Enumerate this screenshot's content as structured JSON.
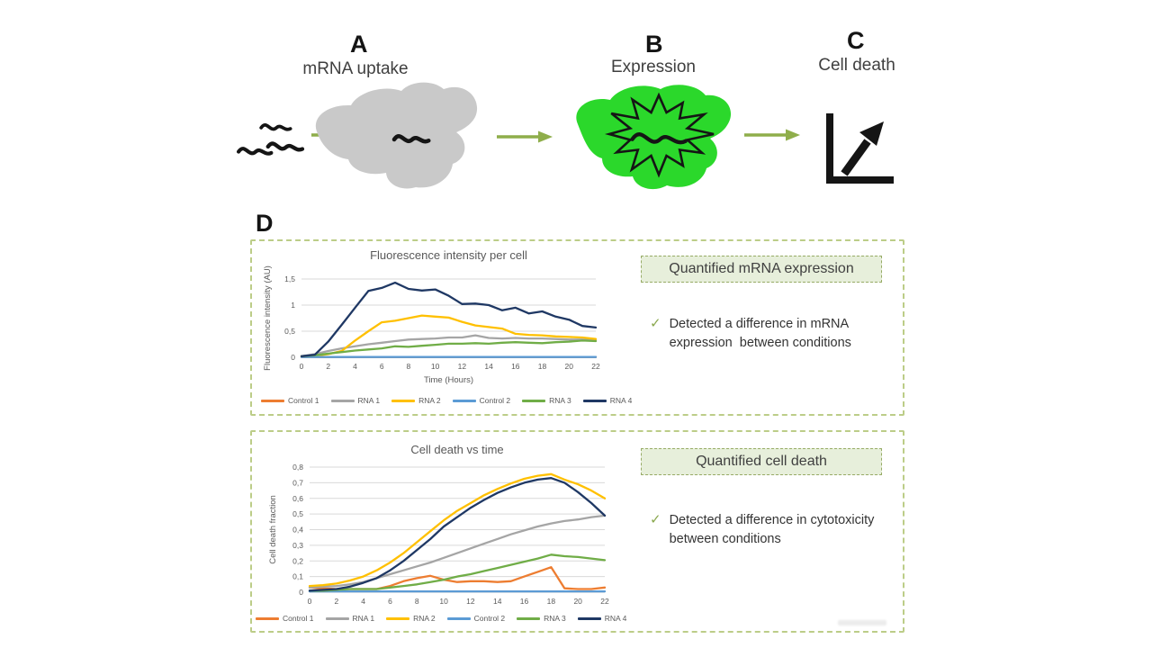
{
  "steps": [
    {
      "letter": "A",
      "caption": "mRNA uptake"
    },
    {
      "letter": "B",
      "caption": "Expression"
    },
    {
      "letter": "C",
      "caption": "Cell death"
    }
  ],
  "section_label": "D",
  "colors": {
    "cell_gray": "#c9c9c9",
    "cell_green": "#2bd82b",
    "arrow_green": "#8fae4b",
    "outer_box_border": "#bccd88",
    "heading_bg": "#e7efdb",
    "heading_border": "#97ab66",
    "check": "#8aa84e",
    "series": {
      "control1": "#ED7D31",
      "rna1": "#A5A5A5",
      "rna2": "#FFC000",
      "control2": "#5B9BD5",
      "rna3": "#70AD47",
      "rna4": "#1F3864"
    }
  },
  "result_panels": [
    {
      "heading": "Quantified mRNA expression",
      "check": "✓",
      "bullet": "Detected a difference in mRNA expression  between conditions"
    },
    {
      "heading": "Quantified cell death",
      "check": "✓",
      "bullet": "Detected a difference in cytotoxicity between conditions"
    }
  ],
  "chart_data": [
    {
      "type": "line",
      "title": "Fluorescence intensity per cell",
      "xlabel": "Time (Hours)",
      "ylabel": "Fluorescence intensity (AU)",
      "grid": true,
      "legend_position": "bottom",
      "xlim": [
        0,
        22
      ],
      "ylim": [
        0,
        1.5
      ],
      "x": [
        0,
        1,
        2,
        3,
        4,
        5,
        6,
        7,
        8,
        9,
        10,
        11,
        12,
        13,
        14,
        15,
        16,
        17,
        18,
        19,
        20,
        21,
        22
      ],
      "xticks": [
        0,
        2,
        4,
        6,
        8,
        10,
        12,
        14,
        16,
        18,
        20,
        22
      ],
      "yticks": [
        {
          "v": 0,
          "label": "0"
        },
        {
          "v": 0.5,
          "label": "0,5"
        },
        {
          "v": 1,
          "label": "1"
        },
        {
          "v": 1.5,
          "label": "1,5"
        }
      ],
      "series": [
        {
          "name": "Control 1",
          "color": "#ED7D31",
          "values": [
            0.005,
            0.005,
            0.005,
            0.005,
            0.005,
            0.005,
            0.005,
            0.005,
            0.005,
            0.005,
            0.005,
            0.005,
            0.005,
            0.005,
            0.005,
            0.005,
            0.005,
            0.005,
            0.005,
            0.005,
            0.005,
            0.005,
            0.005
          ]
        },
        {
          "name": "RNA 1",
          "color": "#A5A5A5",
          "values": [
            0.02,
            0.06,
            0.12,
            0.17,
            0.21,
            0.25,
            0.28,
            0.31,
            0.34,
            0.35,
            0.36,
            0.38,
            0.38,
            0.42,
            0.37,
            0.36,
            0.37,
            0.36,
            0.36,
            0.35,
            0.34,
            0.34,
            0.33
          ]
        },
        {
          "name": "RNA 2",
          "color": "#FFC000",
          "values": [
            0.02,
            0.03,
            0.06,
            0.12,
            0.32,
            0.5,
            0.67,
            0.7,
            0.75,
            0.8,
            0.78,
            0.76,
            0.68,
            0.61,
            0.58,
            0.55,
            0.45,
            0.43,
            0.42,
            0.4,
            0.39,
            0.38,
            0.35
          ]
        },
        {
          "name": "Control 2",
          "color": "#5B9BD5",
          "values": [
            0.005,
            0.005,
            0.005,
            0.005,
            0.005,
            0.005,
            0.005,
            0.005,
            0.005,
            0.005,
            0.005,
            0.005,
            0.005,
            0.005,
            0.005,
            0.005,
            0.005,
            0.005,
            0.005,
            0.005,
            0.005,
            0.005,
            0.005
          ]
        },
        {
          "name": "RNA 3",
          "color": "#70AD47",
          "values": [
            0.02,
            0.04,
            0.07,
            0.1,
            0.13,
            0.15,
            0.17,
            0.21,
            0.2,
            0.22,
            0.24,
            0.26,
            0.26,
            0.27,
            0.26,
            0.28,
            0.29,
            0.28,
            0.27,
            0.29,
            0.3,
            0.32,
            0.31
          ]
        },
        {
          "name": "RNA 4",
          "color": "#1F3864",
          "values": [
            0.02,
            0.05,
            0.3,
            0.62,
            0.95,
            1.27,
            1.33,
            1.43,
            1.31,
            1.28,
            1.3,
            1.18,
            1.02,
            1.03,
            1.0,
            0.9,
            0.95,
            0.84,
            0.88,
            0.78,
            0.72,
            0.6,
            0.57
          ]
        }
      ]
    },
    {
      "type": "line",
      "title": "Cell death vs time",
      "xlabel": "",
      "ylabel": "Cell death fraction",
      "grid": true,
      "legend_position": "bottom",
      "xlim": [
        0,
        22
      ],
      "ylim": [
        0,
        0.8
      ],
      "x": [
        0,
        1,
        2,
        3,
        4,
        5,
        6,
        7,
        8,
        9,
        10,
        11,
        12,
        13,
        14,
        15,
        16,
        17,
        18,
        19,
        20,
        21,
        22
      ],
      "xticks": [
        0,
        2,
        4,
        6,
        8,
        10,
        12,
        14,
        16,
        18,
        20,
        22
      ],
      "yticks": [
        {
          "v": 0,
          "label": "0"
        },
        {
          "v": 0.1,
          "label": "0,1"
        },
        {
          "v": 0.2,
          "label": "0,2"
        },
        {
          "v": 0.3,
          "label": "0,3"
        },
        {
          "v": 0.4,
          "label": "0,4"
        },
        {
          "v": 0.5,
          "label": "0,5"
        },
        {
          "v": 0.6,
          "label": "0,6"
        },
        {
          "v": 0.7,
          "label": "0,7"
        },
        {
          "v": 0.8,
          "label": "0,8"
        }
      ],
      "series": [
        {
          "name": "Control 1",
          "color": "#ED7D31",
          "values": [
            0.03,
            0.025,
            0.02,
            0.02,
            0.02,
            0.02,
            0.04,
            0.07,
            0.09,
            0.105,
            0.08,
            0.065,
            0.07,
            0.07,
            0.065,
            0.07,
            0.1,
            0.13,
            0.16,
            0.025,
            0.02,
            0.02,
            0.03
          ]
        },
        {
          "name": "RNA 1",
          "color": "#A5A5A5",
          "values": [
            0.03,
            0.035,
            0.04,
            0.05,
            0.065,
            0.09,
            0.115,
            0.14,
            0.165,
            0.19,
            0.22,
            0.25,
            0.28,
            0.31,
            0.34,
            0.37,
            0.395,
            0.42,
            0.44,
            0.455,
            0.465,
            0.48,
            0.49
          ]
        },
        {
          "name": "RNA 2",
          "color": "#FFC000",
          "values": [
            0.04,
            0.045,
            0.055,
            0.075,
            0.1,
            0.14,
            0.19,
            0.25,
            0.32,
            0.39,
            0.46,
            0.52,
            0.57,
            0.62,
            0.66,
            0.695,
            0.725,
            0.745,
            0.755,
            0.72,
            0.69,
            0.65,
            0.6
          ]
        },
        {
          "name": "Control 2",
          "color": "#5B9BD5",
          "values": [
            0.005,
            0.005,
            0.005,
            0.005,
            0.005,
            0.005,
            0.005,
            0.005,
            0.005,
            0.005,
            0.005,
            0.005,
            0.005,
            0.005,
            0.005,
            0.005,
            0.005,
            0.005,
            0.005,
            0.005,
            0.005,
            0.005,
            0.005
          ]
        },
        {
          "name": "RNA 3",
          "color": "#70AD47",
          "values": [
            0.01,
            0.01,
            0.015,
            0.02,
            0.02,
            0.02,
            0.03,
            0.04,
            0.05,
            0.065,
            0.08,
            0.1,
            0.115,
            0.135,
            0.155,
            0.175,
            0.195,
            0.215,
            0.24,
            0.23,
            0.225,
            0.215,
            0.205
          ]
        },
        {
          "name": "RNA 4",
          "color": "#1F3864",
          "values": [
            0.01,
            0.015,
            0.02,
            0.035,
            0.06,
            0.09,
            0.14,
            0.2,
            0.27,
            0.34,
            0.42,
            0.48,
            0.54,
            0.59,
            0.635,
            0.67,
            0.7,
            0.72,
            0.73,
            0.7,
            0.64,
            0.57,
            0.49
          ]
        }
      ]
    }
  ]
}
